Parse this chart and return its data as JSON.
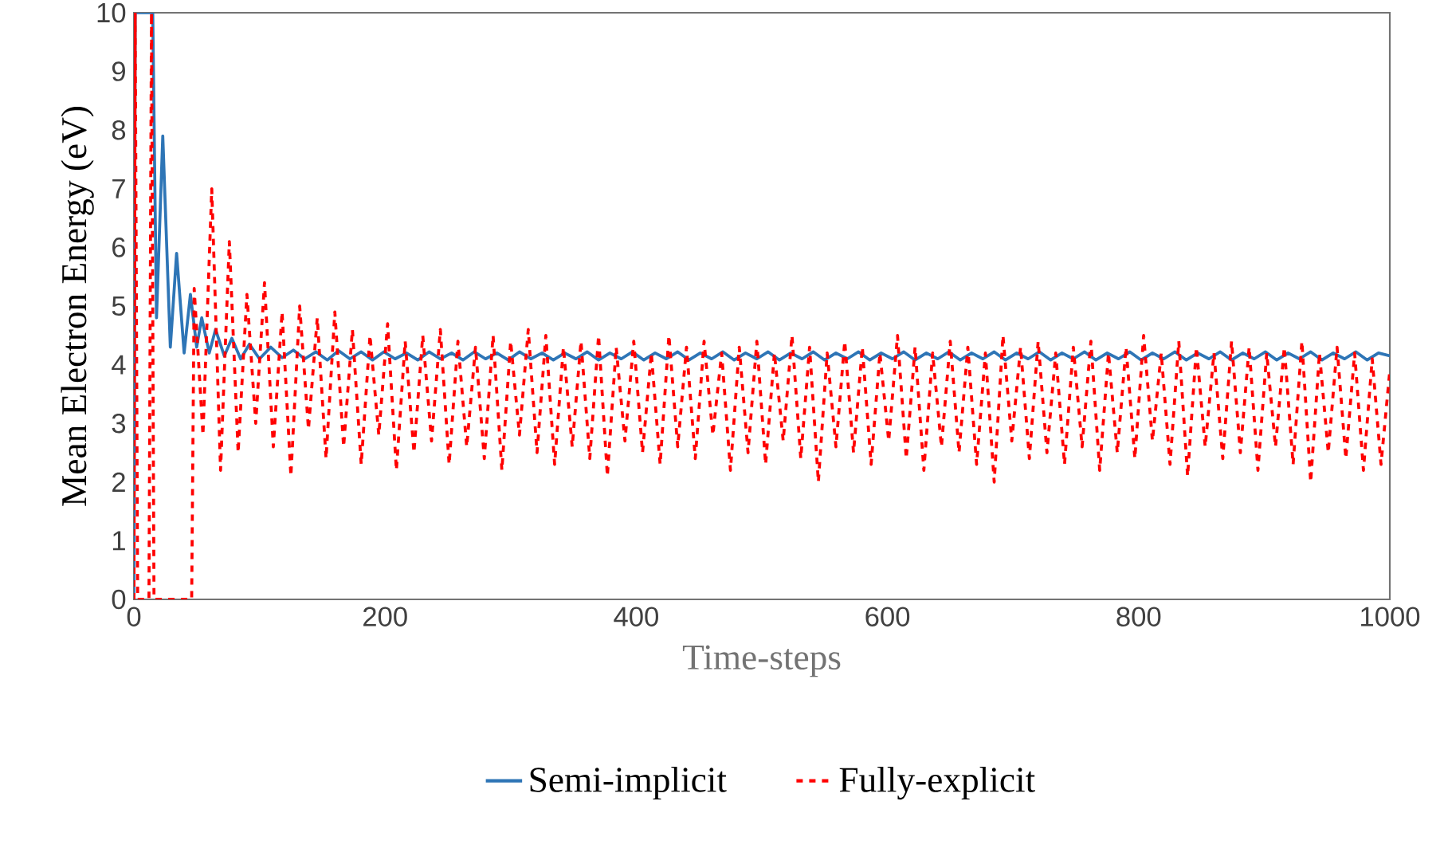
{
  "chart_data": {
    "type": "line",
    "xlabel": "Time-steps",
    "ylabel": "Mean Electron Energy (eV)",
    "xlim": [
      0,
      1000
    ],
    "ylim": [
      0,
      10
    ],
    "xticks": [
      0,
      200,
      400,
      600,
      800,
      1000
    ],
    "yticks": [
      0,
      1,
      2,
      3,
      4,
      5,
      6,
      7,
      8,
      9,
      10
    ],
    "legend": "bottom",
    "series": [
      {
        "name": "Semi-implicit",
        "color": "#2e75b6",
        "line_style": "solid",
        "x": [
          0,
          1,
          15,
          18,
          23,
          29,
          34,
          40,
          45,
          50,
          54,
          60,
          65,
          72,
          78,
          85,
          92,
          100,
          109,
          118,
          127,
          136,
          145,
          154,
          163,
          172,
          181,
          190,
          199,
          208,
          217,
          226,
          235,
          244,
          253,
          262,
          271,
          280,
          289,
          298,
          307,
          316,
          325,
          334,
          343,
          352,
          361,
          370,
          379,
          388,
          397,
          406,
          415,
          424,
          433,
          442,
          451,
          460,
          469,
          478,
          487,
          496,
          505,
          514,
          523,
          532,
          541,
          550,
          559,
          568,
          577,
          586,
          595,
          604,
          613,
          622,
          631,
          640,
          649,
          658,
          667,
          676,
          685,
          694,
          703,
          712,
          721,
          730,
          739,
          748,
          757,
          766,
          775,
          784,
          793,
          802,
          811,
          820,
          829,
          838,
          847,
          856,
          865,
          874,
          883,
          892,
          901,
          910,
          919,
          928,
          937,
          946,
          955,
          964,
          973,
          982,
          991,
          1000
        ],
        "values": [
          0,
          10,
          10,
          4.8,
          7.9,
          4.3,
          5.9,
          4.2,
          5.2,
          4.3,
          4.8,
          4.2,
          4.6,
          4.15,
          4.45,
          4.1,
          4.35,
          4.1,
          4.3,
          4.12,
          4.25,
          4.1,
          4.22,
          4.08,
          4.24,
          4.1,
          4.22,
          4.08,
          4.22,
          4.1,
          4.2,
          4.08,
          4.22,
          4.1,
          4.2,
          4.08,
          4.22,
          4.1,
          4.2,
          4.08,
          4.22,
          4.1,
          4.2,
          4.08,
          4.2,
          4.1,
          4.22,
          4.08,
          4.2,
          4.1,
          4.22,
          4.08,
          4.2,
          4.1,
          4.22,
          4.08,
          4.2,
          4.1,
          4.22,
          4.08,
          4.2,
          4.1,
          4.22,
          4.08,
          4.2,
          4.1,
          4.22,
          4.08,
          4.2,
          4.1,
          4.22,
          4.08,
          4.2,
          4.1,
          4.22,
          4.08,
          4.2,
          4.1,
          4.22,
          4.08,
          4.2,
          4.1,
          4.22,
          4.08,
          4.2,
          4.1,
          4.22,
          4.08,
          4.2,
          4.1,
          4.22,
          4.08,
          4.2,
          4.1,
          4.22,
          4.08,
          4.2,
          4.1,
          4.22,
          4.08,
          4.2,
          4.1,
          4.22,
          4.08,
          4.2,
          4.1,
          4.22,
          4.08,
          4.2,
          4.1,
          4.22,
          4.08,
          4.2,
          4.1,
          4.22,
          4.08,
          4.2,
          4.15
        ]
      },
      {
        "name": "Fully-explicit",
        "color": "#ff0000",
        "line_style": "dashed",
        "x": [
          0,
          1,
          3,
          12,
          14,
          16,
          46,
          48,
          55,
          62,
          69,
          76,
          83,
          90,
          97,
          104,
          111,
          118,
          125,
          132,
          139,
          146,
          153,
          160,
          167,
          174,
          181,
          188,
          195,
          202,
          209,
          216,
          223,
          230,
          237,
          244,
          251,
          258,
          265,
          272,
          279,
          286,
          293,
          300,
          307,
          314,
          321,
          328,
          335,
          342,
          349,
          356,
          363,
          370,
          377,
          384,
          391,
          398,
          405,
          412,
          419,
          426,
          433,
          440,
          447,
          454,
          461,
          468,
          475,
          482,
          489,
          496,
          503,
          510,
          517,
          524,
          531,
          538,
          545,
          552,
          559,
          566,
          573,
          580,
          587,
          594,
          601,
          608,
          615,
          622,
          629,
          636,
          643,
          650,
          657,
          664,
          671,
          678,
          685,
          692,
          699,
          706,
          713,
          720,
          727,
          734,
          741,
          748,
          755,
          762,
          769,
          776,
          783,
          790,
          797,
          804,
          811,
          818,
          825,
          832,
          839,
          846,
          853,
          860,
          867,
          874,
          881,
          888,
          895,
          902,
          909,
          916,
          923,
          930,
          937,
          944,
          951,
          958,
          965,
          972,
          979,
          986,
          993,
          1000
        ],
        "values": [
          0,
          10,
          0,
          0,
          10,
          0,
          0,
          5.3,
          2.8,
          7.0,
          2.2,
          6.1,
          2.5,
          5.2,
          3.0,
          5.4,
          2.6,
          4.9,
          2.1,
          5.0,
          2.9,
          4.8,
          2.4,
          4.9,
          2.6,
          4.6,
          2.3,
          4.5,
          2.8,
          4.7,
          2.2,
          4.4,
          2.5,
          4.5,
          2.7,
          4.6,
          2.3,
          4.4,
          2.6,
          4.3,
          2.4,
          4.5,
          2.2,
          4.4,
          2.8,
          4.6,
          2.5,
          4.5,
          2.3,
          4.3,
          2.6,
          4.4,
          2.4,
          4.5,
          2.1,
          4.3,
          2.7,
          4.4,
          2.5,
          4.2,
          2.3,
          4.5,
          2.6,
          4.3,
          2.4,
          4.4,
          2.8,
          4.2,
          2.2,
          4.3,
          2.5,
          4.4,
          2.3,
          4.2,
          2.7,
          4.5,
          2.4,
          4.3,
          2.0,
          4.2,
          2.6,
          4.4,
          2.5,
          4.3,
          2.3,
          4.2,
          2.7,
          4.5,
          2.4,
          4.3,
          2.2,
          4.2,
          2.6,
          4.4,
          2.5,
          4.3,
          2.3,
          4.2,
          2.0,
          4.5,
          2.7,
          4.3,
          2.4,
          4.4,
          2.5,
          4.2,
          2.3,
          4.3,
          2.6,
          4.4,
          2.2,
          4.2,
          2.5,
          4.3,
          2.4,
          4.5,
          2.7,
          4.2,
          2.3,
          4.4,
          2.1,
          4.3,
          2.6,
          4.2,
          2.4,
          4.4,
          2.5,
          4.3,
          2.2,
          4.2,
          2.6,
          4.3,
          2.3,
          4.4,
          2.0,
          4.2,
          2.5,
          4.3,
          2.4,
          4.2,
          2.2,
          4.1,
          2.3,
          3.9
        ]
      }
    ]
  }
}
